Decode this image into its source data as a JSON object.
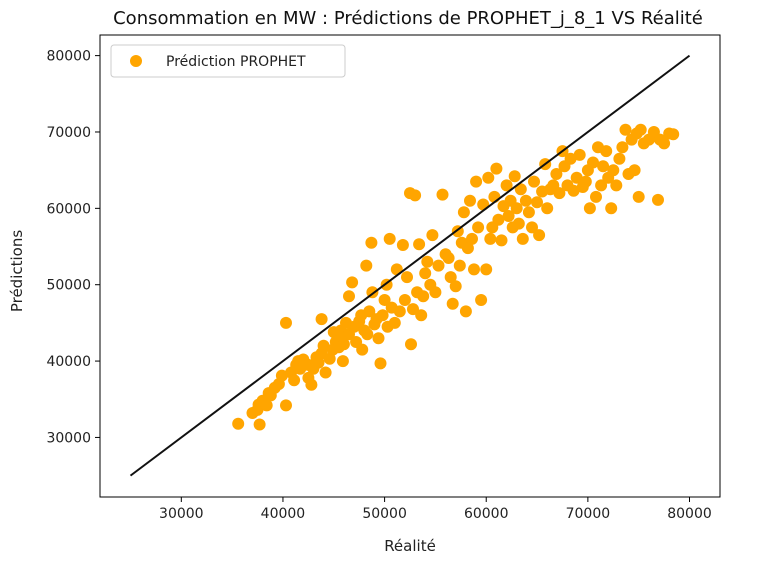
{
  "chart_data": {
    "type": "scatter",
    "title": "Consommation en MW : Prédictions de PROPHET_j_8_1 VS Réalité",
    "xlabel": "Réalité",
    "ylabel": "Prédictions",
    "xlim": [
      22000,
      83000
    ],
    "ylim": [
      22200,
      82700
    ],
    "xticks": [
      30000,
      40000,
      50000,
      60000,
      70000,
      80000
    ],
    "yticks": [
      30000,
      40000,
      50000,
      60000,
      70000,
      80000
    ],
    "grid": false,
    "legend": {
      "position": "top-left",
      "entries": [
        "Prédiction PROPHET"
      ]
    },
    "colors": {
      "points": "#FFA500",
      "reference_line": "#111111"
    },
    "reference_line": {
      "x": [
        25000,
        80000
      ],
      "y": [
        25000,
        80000
      ]
    },
    "series": [
      {
        "name": "Prédiction PROPHET",
        "points": [
          [
            35600,
            31800
          ],
          [
            37000,
            33200
          ],
          [
            37500,
            33600
          ],
          [
            37700,
            31700
          ],
          [
            37600,
            34300
          ],
          [
            38000,
            34800
          ],
          [
            38400,
            34200
          ],
          [
            38800,
            35500
          ],
          [
            39200,
            36500
          ],
          [
            39600,
            37000
          ],
          [
            38600,
            35800
          ],
          [
            39900,
            38100
          ],
          [
            40300,
            34200
          ],
          [
            40300,
            45000
          ],
          [
            40800,
            38500
          ],
          [
            41100,
            37500
          ],
          [
            41300,
            39500
          ],
          [
            41500,
            40000
          ],
          [
            41700,
            39000
          ],
          [
            42000,
            40200
          ],
          [
            42500,
            39500
          ],
          [
            42500,
            37800
          ],
          [
            42800,
            36900
          ],
          [
            43000,
            39000
          ],
          [
            43300,
            40500
          ],
          [
            43500,
            39800
          ],
          [
            43800,
            41000
          ],
          [
            44000,
            42000
          ],
          [
            43800,
            45500
          ],
          [
            44200,
            38500
          ],
          [
            44600,
            40300
          ],
          [
            44900,
            41500
          ],
          [
            45000,
            43800
          ],
          [
            45200,
            42500
          ],
          [
            45500,
            41800
          ],
          [
            45700,
            44000
          ],
          [
            45800,
            43000
          ],
          [
            45900,
            40000
          ],
          [
            46000,
            42200
          ],
          [
            46200,
            45000
          ],
          [
            46500,
            43500
          ],
          [
            46500,
            48500
          ],
          [
            46800,
            50300
          ],
          [
            47000,
            44500
          ],
          [
            47200,
            42500
          ],
          [
            47500,
            45200
          ],
          [
            47700,
            46000
          ],
          [
            47800,
            41500
          ],
          [
            48000,
            44000
          ],
          [
            48200,
            52500
          ],
          [
            48300,
            43500
          ],
          [
            48500,
            46500
          ],
          [
            48700,
            55500
          ],
          [
            48800,
            49000
          ],
          [
            49000,
            44800
          ],
          [
            49200,
            45500
          ],
          [
            49400,
            43000
          ],
          [
            49600,
            39700
          ],
          [
            49800,
            46000
          ],
          [
            50000,
            48000
          ],
          [
            50200,
            50000
          ],
          [
            50300,
            44500
          ],
          [
            50500,
            56000
          ],
          [
            50700,
            47000
          ],
          [
            51000,
            45000
          ],
          [
            51200,
            52000
          ],
          [
            51500,
            46500
          ],
          [
            51800,
            55200
          ],
          [
            52000,
            48000
          ],
          [
            52200,
            51000
          ],
          [
            52500,
            62000
          ],
          [
            52600,
            42200
          ],
          [
            52800,
            46800
          ],
          [
            53000,
            61700
          ],
          [
            53200,
            49000
          ],
          [
            53400,
            55300
          ],
          [
            53600,
            46000
          ],
          [
            53800,
            48500
          ],
          [
            54000,
            51500
          ],
          [
            54200,
            53000
          ],
          [
            54500,
            50000
          ],
          [
            54700,
            56500
          ],
          [
            55000,
            49000
          ],
          [
            55300,
            52500
          ],
          [
            55700,
            61800
          ],
          [
            56000,
            54000
          ],
          [
            56300,
            53500
          ],
          [
            56500,
            51000
          ],
          [
            56700,
            47500
          ],
          [
            57000,
            49800
          ],
          [
            57200,
            57000
          ],
          [
            57400,
            52500
          ],
          [
            57600,
            55500
          ],
          [
            57800,
            59500
          ],
          [
            58000,
            46500
          ],
          [
            58200,
            54800
          ],
          [
            58400,
            61000
          ],
          [
            58600,
            56000
          ],
          [
            58800,
            52000
          ],
          [
            59000,
            63500
          ],
          [
            59200,
            57500
          ],
          [
            59500,
            48000
          ],
          [
            59700,
            60500
          ],
          [
            60000,
            52000
          ],
          [
            60200,
            64000
          ],
          [
            60400,
            56000
          ],
          [
            60600,
            57500
          ],
          [
            60800,
            61500
          ],
          [
            61000,
            65200
          ],
          [
            61200,
            58500
          ],
          [
            61500,
            55800
          ],
          [
            61700,
            60300
          ],
          [
            62000,
            63000
          ],
          [
            62200,
            59000
          ],
          [
            62400,
            61000
          ],
          [
            62600,
            57500
          ],
          [
            62800,
            64200
          ],
          [
            63000,
            60000
          ],
          [
            63200,
            58000
          ],
          [
            63400,
            62500
          ],
          [
            63600,
            56000
          ],
          [
            63900,
            61000
          ],
          [
            64200,
            59500
          ],
          [
            64500,
            57500
          ],
          [
            64700,
            63500
          ],
          [
            65000,
            60800
          ],
          [
            65200,
            56500
          ],
          [
            65500,
            62200
          ],
          [
            65800,
            65800
          ],
          [
            66000,
            60000
          ],
          [
            66300,
            62500
          ],
          [
            66600,
            63000
          ],
          [
            66900,
            64500
          ],
          [
            67200,
            62000
          ],
          [
            67500,
            67500
          ],
          [
            67700,
            65500
          ],
          [
            68000,
            63000
          ],
          [
            68300,
            66500
          ],
          [
            68600,
            62300
          ],
          [
            68900,
            64000
          ],
          [
            69200,
            67000
          ],
          [
            69500,
            62800
          ],
          [
            69800,
            63500
          ],
          [
            70000,
            65000
          ],
          [
            70200,
            60000
          ],
          [
            70500,
            66000
          ],
          [
            70800,
            61500
          ],
          [
            71000,
            68000
          ],
          [
            71300,
            63000
          ],
          [
            71500,
            65500
          ],
          [
            71800,
            67500
          ],
          [
            72000,
            64000
          ],
          [
            72300,
            60000
          ],
          [
            72500,
            65000
          ],
          [
            72800,
            63000
          ],
          [
            73100,
            66500
          ],
          [
            73400,
            68000
          ],
          [
            73700,
            70300
          ],
          [
            74000,
            64500
          ],
          [
            74300,
            69000
          ],
          [
            74600,
            65000
          ],
          [
            74800,
            69800
          ],
          [
            75000,
            61500
          ],
          [
            75200,
            70300
          ],
          [
            75500,
            68500
          ],
          [
            76000,
            69000
          ],
          [
            76500,
            70000
          ],
          [
            76900,
            61100
          ],
          [
            77100,
            69000
          ],
          [
            77500,
            68500
          ],
          [
            78000,
            69800
          ],
          [
            78400,
            69700
          ]
        ]
      }
    ]
  }
}
